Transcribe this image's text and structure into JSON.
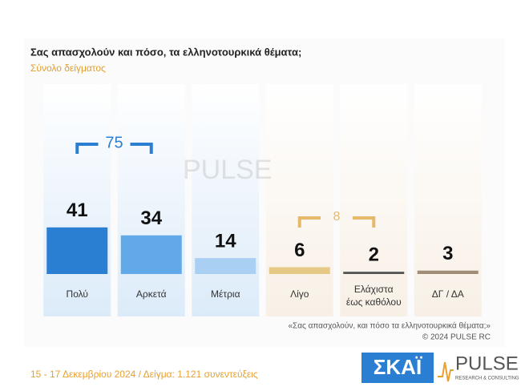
{
  "chart_data": {
    "type": "bar",
    "title": "Σας απασχολούν και πόσο, τα ελληνοτουρκικά θέματα;",
    "subtitle": "Σύνολο δείγματος",
    "categories": [
      "Πολύ",
      "Αρκετά",
      "Μέτρια",
      "Λίγο",
      [
        "Ελάχιστα",
        "έως καθόλου"
      ],
      "ΔΓ / ΔΑ"
    ],
    "values": [
      41,
      34,
      14,
      6,
      2,
      3
    ],
    "colors": [
      "#2b7fd3",
      "#62a9ea",
      "#a9cff3",
      "#e6c987",
      "#555555",
      "#a08c78"
    ],
    "annotations": [
      75,
      8
    ],
    "footnote": [
      "«Σας απασχολούν, και πόσο τα ελληνοτουρκικά θέματα;»",
      "©  2024  PULSE RC"
    ],
    "footer": "15 - 17 Δεκεμβρίου 2024  /  Δείγμα:  1.121 συνεντεύξεις",
    "logos": {
      "skai": "ΣΚΑΪ",
      "pulse": "PULSE",
      "pulse_sub": "RESEARCH & CONSULTING"
    }
  }
}
